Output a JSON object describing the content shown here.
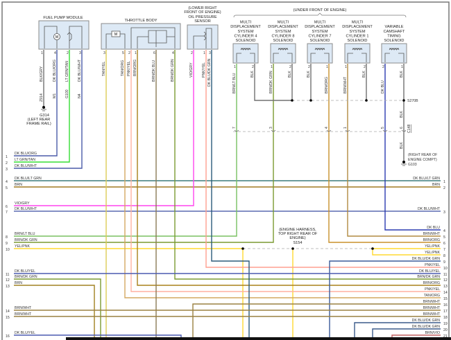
{
  "components": {
    "fuel_pump": {
      "title": "FUEL PUMP MODULE",
      "pins": [
        "1",
        "4",
        "2",
        "3"
      ],
      "wires": [
        "BLK/GRY",
        "DK BLU/ORG",
        "LT GRN/TAN",
        "DK BLU/WHT"
      ],
      "circuits": [
        "Z914",
        "M1",
        "G100",
        "N4"
      ],
      "motor": "M"
    },
    "ground_g314": {
      "id": "G314",
      "location": [
        "(LEFT REAR",
        "FRAME RAIL)"
      ]
    },
    "throttle_body": {
      "title": "THROTTLE BODY",
      "pins": [
        "3",
        "5",
        "2",
        "1",
        "6",
        "4"
      ],
      "wires": [
        "TAN/YEL",
        "TAN/ORG",
        "PNK/YEL",
        "BRN/ORG",
        "BRN/DK BLU",
        "BRN/DK GRN"
      ],
      "motor": "M"
    },
    "oil_pressure": {
      "title": [
        "(LOWER RIGHT",
        "FRONT OF ENGINE)",
        "OIL PRESSURE",
        "SENSOR"
      ],
      "pins": [
        "2",
        "1",
        "3"
      ],
      "wires": [
        "VIO/GRY",
        "PNK/YEL",
        "DK BLU/DK GRN"
      ]
    },
    "under_front": "(UNDER FRONT OF ENGINE)",
    "solenoids": [
      {
        "title": [
          "MULTI",
          "DISPLACEMENT",
          "SYSTEM",
          "CYLINDER 4",
          "SOLENOID"
        ],
        "pins": [
          "1",
          "2"
        ],
        "wires": [
          "BRN/LT BLU",
          "BLK"
        ]
      },
      {
        "title": [
          "MULTI",
          "DISPLACEMENT",
          "SYSTEM",
          "CYLINDER 8",
          "SOLENOID"
        ],
        "pins": [
          "1",
          "2"
        ],
        "wires": [
          "BRN/DK GRN",
          "BLK"
        ]
      },
      {
        "title": [
          "MULTI",
          "DISPLACEMENT",
          "SYSTEM",
          "CYLINDER 7",
          "SOLENOID"
        ],
        "pins": [
          "2",
          "1"
        ],
        "wires": [
          "BLK",
          "BRN/ORG"
        ]
      },
      {
        "title": [
          "MULTI",
          "DISPLACEMENT",
          "SYSTEM",
          "CYLINDER 1",
          "SOLENOID"
        ],
        "pins": [
          "1",
          "2"
        ],
        "wires": [
          "BRN/WHT",
          "BLK"
        ]
      },
      {
        "title": [
          "VARIABLE",
          "CAMSHAFT",
          "TIMING",
          "SOLENOID"
        ],
        "pins": [
          "2",
          "1"
        ],
        "wires": [
          "DK BLU",
          "BLK"
        ]
      }
    ],
    "splice_s270b": "S270B",
    "connector_c148": {
      "id": "C148",
      "pins": [
        "7",
        "3",
        "4",
        "1",
        "5",
        "6"
      ],
      "blk_wire": "BLK"
    },
    "ground_g103": {
      "id": "G103",
      "location": [
        "(RIGHT REAR OF",
        "ENGINE COMPT)"
      ],
      "wire": "BLK"
    },
    "splice_s154": {
      "id": "S154",
      "location": [
        "(ENGINE HARNESS,",
        "TOP RIGHT REAR OF",
        "ENGINE)"
      ]
    }
  },
  "left_rows": [
    {
      "num": "1",
      "label": "DK BLU/ORG"
    },
    {
      "num": "2",
      "label": "LT GRN/TAN"
    },
    {
      "num": "3",
      "label": "DK BLU/WHT"
    },
    {
      "num": "4",
      "label": "DK BLU/LT GRN"
    },
    {
      "num": "5",
      "label": "BRN"
    },
    {
      "num": "6",
      "label": "VIO/GRY"
    },
    {
      "num": "7",
      "label": "DK BLU/WHT"
    },
    {
      "num": "8",
      "label": "BRN/LT BLU"
    },
    {
      "num": "9",
      "label": "BRN/DK GRN"
    },
    {
      "num": "10",
      "label": "YEL/PNK"
    },
    {
      "num": "11",
      "label": "DK BLU/YEL"
    },
    {
      "num": "12",
      "label": "BRN/DK GRN"
    },
    {
      "num": "13",
      "label": "BRN"
    },
    {
      "num": "14",
      "label": "BRN/WHT"
    },
    {
      "num": "15",
      "label": "BRN/WHT"
    },
    {
      "num": "16",
      "label": "DK BLU/YEL"
    }
  ],
  "right_rows": [
    {
      "num": "1",
      "label": "DK BLU/LT GRN"
    },
    {
      "num": "2",
      "label": "BRN"
    },
    {
      "num": "3",
      "label": "DK BLU/WHT"
    },
    {
      "num": "4",
      "label": "DK BLU"
    },
    {
      "num": "5",
      "label": "BRN/WHT"
    },
    {
      "num": "6",
      "label": "BRN/ORG"
    },
    {
      "num": "7",
      "label": "YEL/PNK"
    },
    {
      "num": "8",
      "label": "YEL/PNK"
    },
    {
      "num": "9",
      "label": "DK BLU/DK GRN"
    },
    {
      "num": "10",
      "label": "PNK/YEL"
    },
    {
      "num": "11",
      "label": "DK BLU/YEL"
    },
    {
      "num": "12",
      "label": "BRN/DK GRN"
    },
    {
      "num": "13",
      "label": "BRN/ORG"
    },
    {
      "num": "14",
      "label": "PNK/YEL"
    },
    {
      "num": "15",
      "label": "TAN/ORG"
    },
    {
      "num": "16",
      "label": "BRN/WHT"
    },
    {
      "num": "17",
      "label": "BRN/WHT"
    },
    {
      "num": "18",
      "label": "BRN/WHT"
    },
    {
      "num": "19",
      "label": "DK BLU/DK GRN"
    },
    {
      "num": "20",
      "label": "DK BLU/DK GRN"
    },
    {
      "num": "21",
      "label": "BRN/VIO"
    }
  ],
  "colors": {
    "dk_blu": "#4a5aa8",
    "lt_grn_tan": "#33dd33",
    "brn": "#a07820",
    "vio_gry": "#ff44ee",
    "yel_pnk": "#ffd830",
    "pnk_yel": "#ffa898",
    "blk": "#707070",
    "brn_dk_grn": "#7a9a30",
    "brn_lt_blu": "#78c060",
    "dk_blu_dk_grn": "#2a5a7a",
    "brn_wht": "#9a8040",
    "tan_yel": "#ddcc55",
    "tan_org": "#d4a860",
    "brn_org": "#c8902a",
    "dk_blu_lt_grn": "#3a7a7a",
    "brn_vio": "#c06060"
  }
}
